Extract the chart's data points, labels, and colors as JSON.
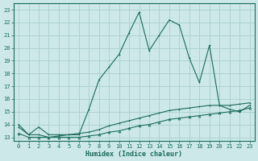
{
  "xlabel": "Humidex (Indice chaleur)",
  "x_ticks": [
    0,
    1,
    2,
    3,
    4,
    5,
    6,
    7,
    8,
    9,
    10,
    11,
    12,
    13,
    14,
    15,
    16,
    17,
    18,
    19,
    20,
    21,
    22,
    23
  ],
  "y_ticks": [
    13,
    14,
    15,
    16,
    17,
    18,
    19,
    20,
    21,
    22,
    23
  ],
  "ylim": [
    12.7,
    23.5
  ],
  "xlim": [
    -0.5,
    23.5
  ],
  "bg_color": "#cce8e8",
  "grid_color": "#aacece",
  "line_color": "#1a6b5a",
  "line1": [
    14.0,
    13.2,
    13.8,
    13.2,
    13.2,
    13.2,
    13.2,
    15.2,
    17.5,
    18.5,
    19.5,
    21.2,
    22.8,
    19.8,
    21.0,
    22.2,
    21.8,
    19.2,
    17.3,
    20.2,
    15.5,
    15.2,
    15.0,
    15.5
  ],
  "line2": [
    13.3,
    13.0,
    13.0,
    13.0,
    13.0,
    13.0,
    13.0,
    13.1,
    13.2,
    13.4,
    13.5,
    13.7,
    13.9,
    14.0,
    14.2,
    14.4,
    14.5,
    14.6,
    14.7,
    14.8,
    14.9,
    15.0,
    15.1,
    15.3
  ],
  "line3": [
    13.8,
    13.2,
    13.2,
    13.0,
    13.1,
    13.2,
    13.3,
    13.4,
    13.6,
    13.9,
    14.1,
    14.3,
    14.5,
    14.7,
    14.9,
    15.1,
    15.2,
    15.3,
    15.4,
    15.5,
    15.5,
    15.5,
    15.6,
    15.7
  ],
  "marker1": "+",
  "marker2": "^",
  "marker3": "+"
}
